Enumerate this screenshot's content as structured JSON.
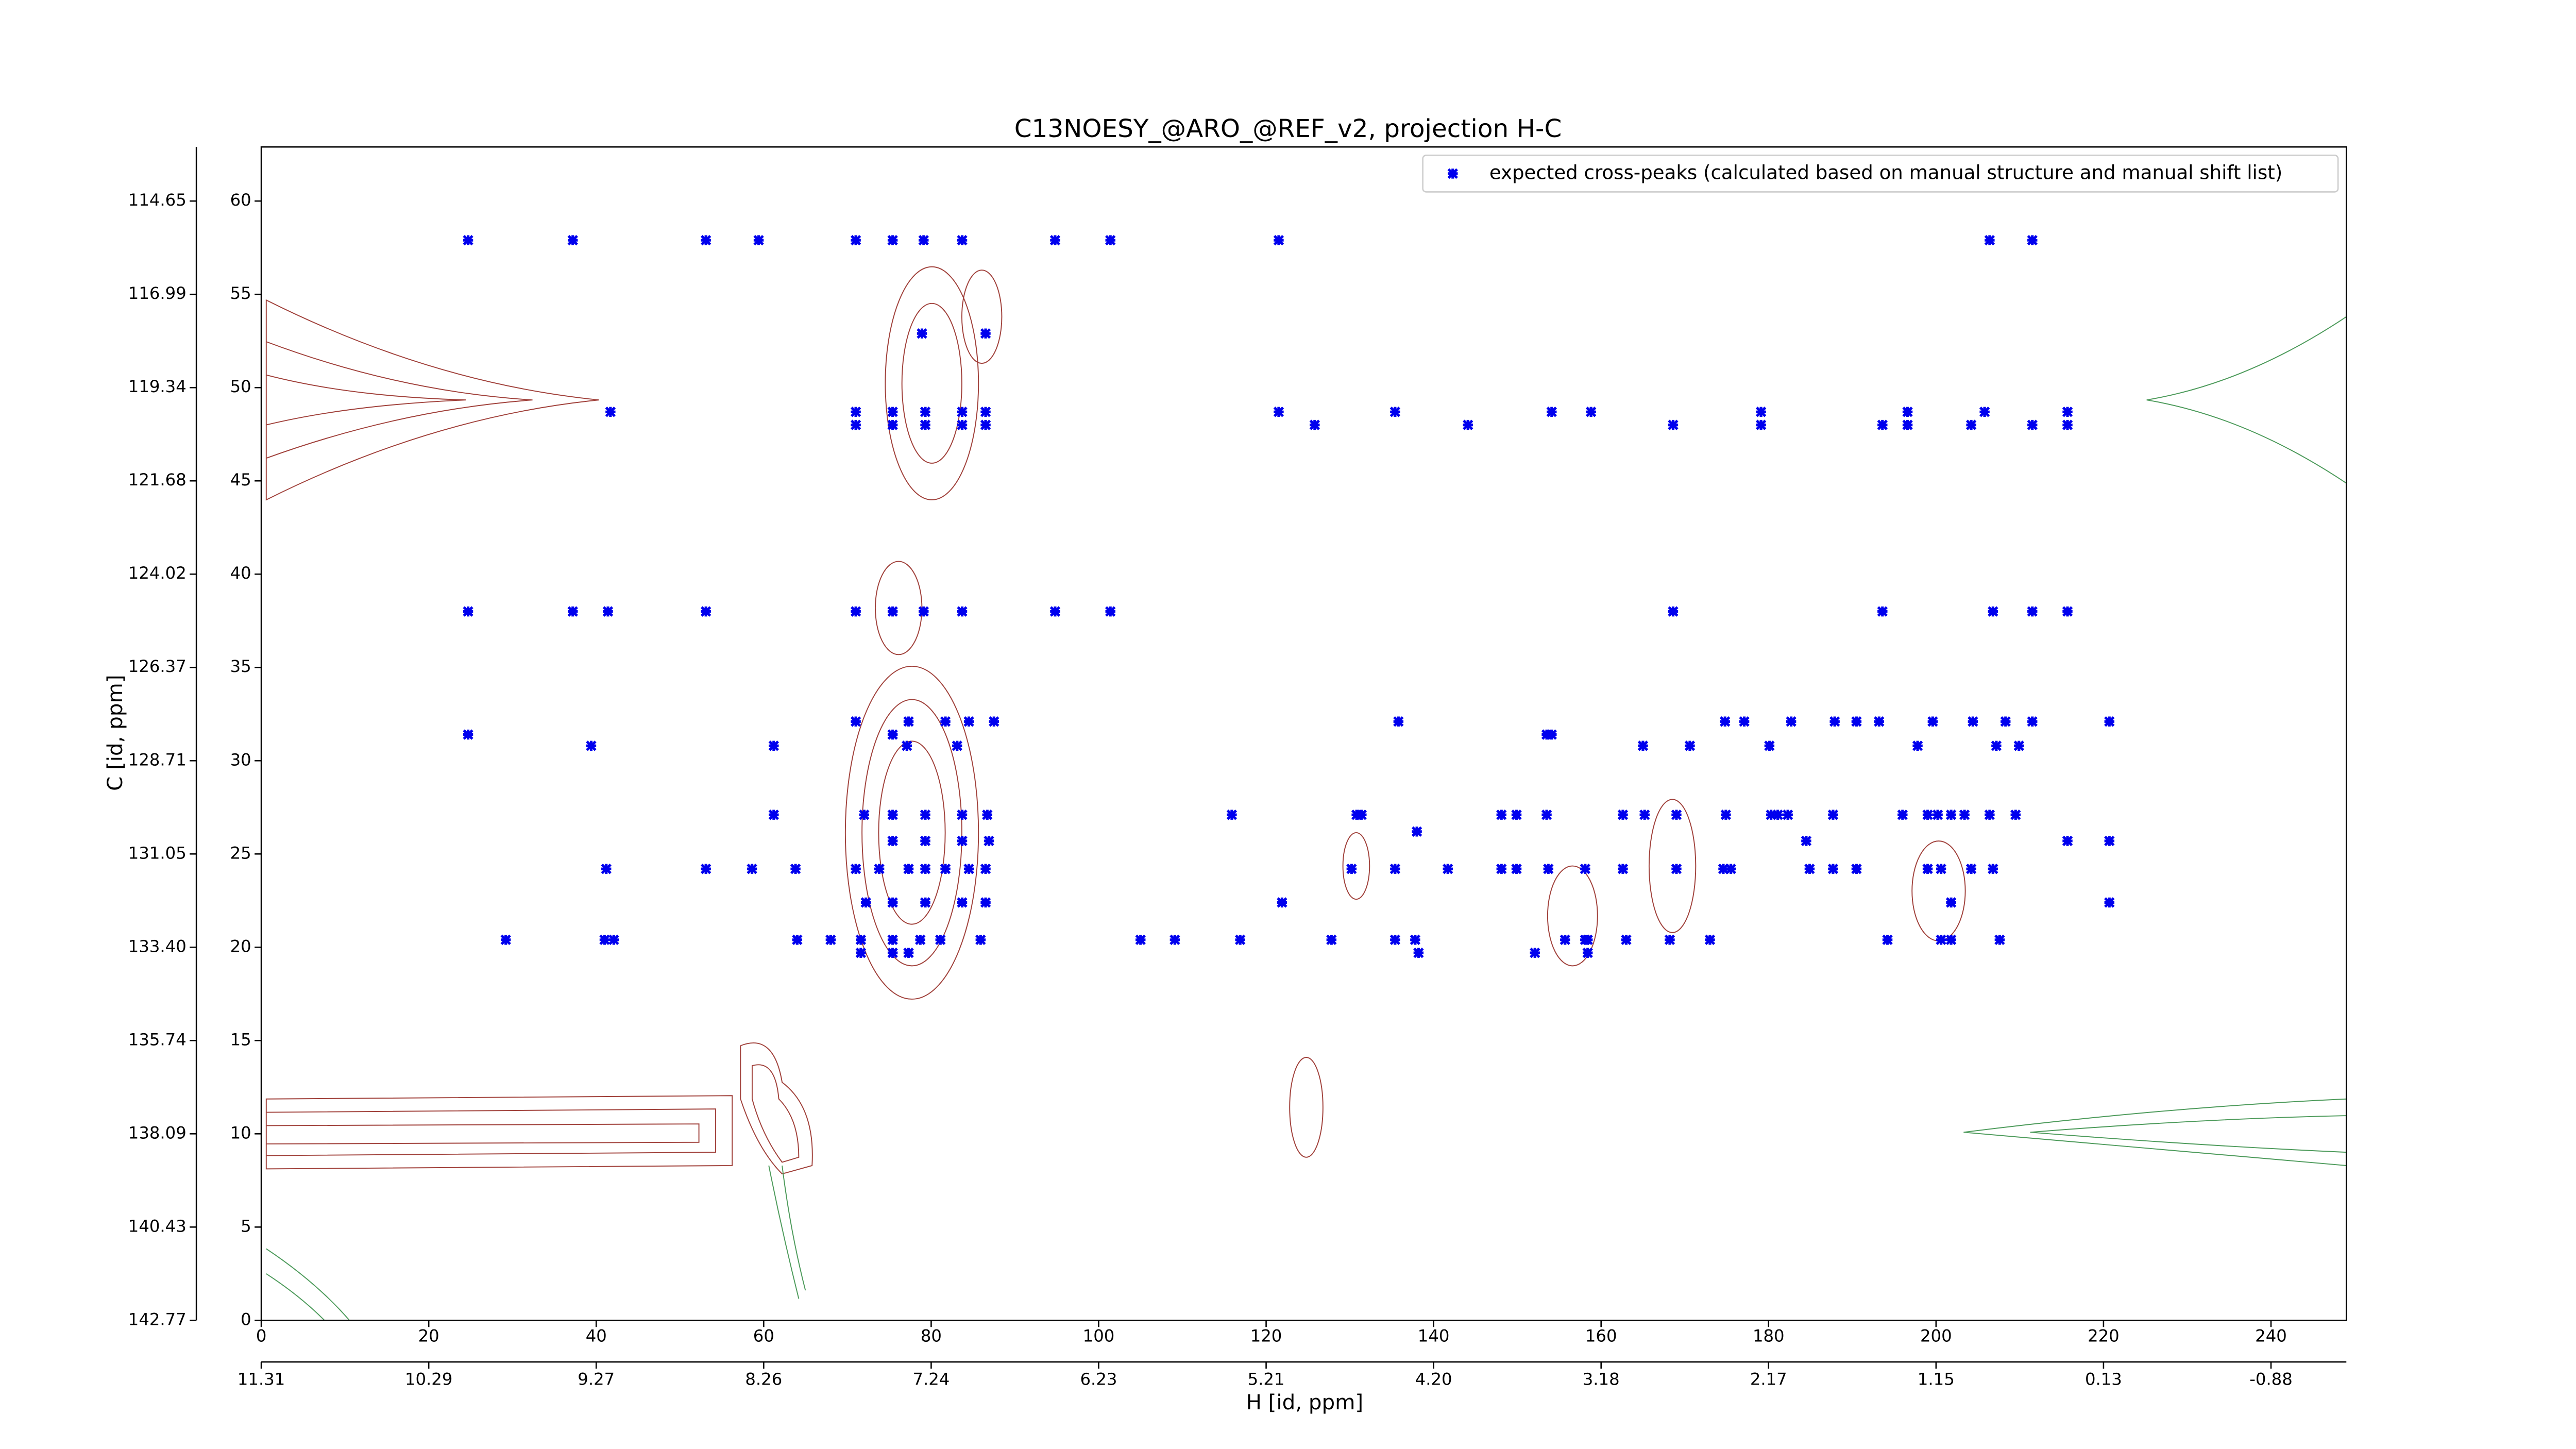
{
  "chart_data": {
    "type": "scatter",
    "title": "C13NOESY_@ARO_@REF_v2, projection H-C",
    "xlabel": "H [id, ppm]",
    "ylabel": "C [id, ppm]",
    "xlim": [
      0,
      249
    ],
    "ylim": [
      0,
      62.9
    ],
    "xticks": [
      0,
      20,
      40,
      60,
      80,
      100,
      120,
      140,
      160,
      180,
      200,
      220,
      240
    ],
    "x2ticks": [
      {
        "value": 0,
        "label": "11.31"
      },
      {
        "value": 20,
        "label": "10.29"
      },
      {
        "value": 40,
        "label": "9.27"
      },
      {
        "value": 60,
        "label": "8.26"
      },
      {
        "value": 80,
        "label": "7.24"
      },
      {
        "value": 100,
        "label": "6.23"
      },
      {
        "value": 120,
        "label": "5.21"
      },
      {
        "value": 140,
        "label": "4.20"
      },
      {
        "value": 160,
        "label": "3.18"
      },
      {
        "value": 180,
        "label": "2.17"
      },
      {
        "value": 200,
        "label": "1.15"
      },
      {
        "value": 220,
        "label": "0.13"
      },
      {
        "value": 240,
        "label": "-0.88"
      }
    ],
    "yticks": [
      0,
      5,
      10,
      15,
      20,
      25,
      30,
      35,
      40,
      45,
      50,
      55,
      60
    ],
    "y2ticks": [
      {
        "value": 60,
        "label": "114.65"
      },
      {
        "value": 55,
        "label": "116.99"
      },
      {
        "value": 50,
        "label": "119.34"
      },
      {
        "value": 45,
        "label": "121.68"
      },
      {
        "value": 40,
        "label": "124.02"
      },
      {
        "value": 35,
        "label": "126.37"
      },
      {
        "value": 30,
        "label": "128.71"
      },
      {
        "value": 25,
        "label": "131.05"
      },
      {
        "value": 20,
        "label": "133.40"
      },
      {
        "value": 15,
        "label": "135.74"
      },
      {
        "value": 10,
        "label": "138.09"
      },
      {
        "value": 5,
        "label": "140.43"
      },
      {
        "value": 0,
        "label": "142.77"
      }
    ],
    "legend": "upper right",
    "series": [
      {
        "name": "expected cross-peaks (calculated based on manual structure and manual shift list)",
        "color": "#0000ee",
        "x": [
          24.7,
          37.2,
          53.1,
          59.4,
          71.0,
          75.4,
          79.1,
          83.7,
          94.8,
          101.4,
          121.5,
          206.4,
          211.5,
          78.9,
          86.5,
          41.7,
          71.0,
          75.4,
          79.3,
          83.7,
          86.5,
          121.5,
          135.4,
          154.1,
          158.8,
          179.1,
          196.6,
          205.8,
          215.7,
          71.0,
          75.4,
          79.3,
          83.7,
          86.5,
          125.8,
          144.1,
          168.6,
          179.1,
          193.6,
          196.6,
          204.2,
          211.5,
          215.7,
          24.7,
          37.2,
          41.4,
          53.1,
          71.0,
          75.4,
          79.1,
          83.7,
          94.8,
          101.4,
          168.6,
          193.6,
          206.8,
          211.5,
          215.7,
          71.0,
          77.3,
          81.7,
          84.5,
          87.5,
          135.8,
          174.8,
          177.1,
          182.7,
          187.9,
          190.5,
          193.2,
          199.6,
          204.4,
          208.3,
          211.5,
          220.7,
          24.7,
          75.4,
          153.5,
          154.1,
          39.4,
          61.2,
          77.1,
          83.1,
          165.0,
          170.6,
          180.1,
          197.8,
          207.2,
          209.9,
          61.2,
          72.0,
          75.4,
          79.3,
          83.7,
          86.7,
          115.9,
          130.8,
          131.4,
          148.1,
          149.9,
          153.5,
          162.6,
          165.2,
          169.0,
          174.9,
          180.3,
          181.1,
          182.3,
          187.7,
          196.0,
          199.0,
          200.2,
          201.8,
          203.4,
          206.4,
          209.5,
          138.0,
          75.4,
          79.3,
          83.7,
          86.9,
          184.5,
          215.7,
          220.7,
          41.2,
          53.1,
          58.6,
          63.8,
          71.0,
          73.8,
          77.3,
          79.3,
          81.7,
          84.5,
          86.5,
          130.2,
          135.4,
          141.7,
          148.1,
          149.9,
          153.7,
          158.1,
          162.6,
          169.0,
          174.6,
          175.5,
          184.9,
          187.7,
          190.5,
          199.0,
          200.6,
          204.2,
          206.8,
          72.2,
          75.4,
          79.3,
          83.7,
          86.5,
          121.9,
          201.8,
          220.7,
          29.2,
          41.0,
          42.1,
          64.0,
          68.0,
          71.6,
          75.4,
          78.7,
          81.1,
          85.9,
          105.0,
          109.1,
          116.9,
          127.8,
          135.4,
          137.8,
          155.7,
          158.1,
          158.4,
          163.0,
          168.2,
          173.0,
          194.2,
          200.6,
          201.8,
          207.6,
          71.6,
          75.4,
          77.3,
          138.2,
          152.1,
          158.4
        ],
        "values": [
          57.9,
          57.9,
          57.9,
          57.9,
          57.9,
          57.9,
          57.9,
          57.9,
          57.9,
          57.9,
          57.9,
          57.9,
          57.9,
          52.9,
          52.9,
          48.7,
          48.7,
          48.7,
          48.7,
          48.7,
          48.7,
          48.7,
          48.7,
          48.7,
          48.7,
          48.7,
          48.7,
          48.7,
          48.7,
          48.0,
          48.0,
          48.0,
          48.0,
          48.0,
          48.0,
          48.0,
          48.0,
          48.0,
          48.0,
          48.0,
          48.0,
          48.0,
          48.0,
          38.0,
          38.0,
          38.0,
          38.0,
          38.0,
          38.0,
          38.0,
          38.0,
          38.0,
          38.0,
          38.0,
          38.0,
          38.0,
          38.0,
          38.0,
          32.1,
          32.1,
          32.1,
          32.1,
          32.1,
          32.1,
          32.1,
          32.1,
          32.1,
          32.1,
          32.1,
          32.1,
          32.1,
          32.1,
          32.1,
          32.1,
          32.1,
          31.4,
          31.4,
          31.4,
          31.4,
          30.8,
          30.8,
          30.8,
          30.8,
          30.8,
          30.8,
          30.8,
          30.8,
          30.8,
          30.8,
          27.1,
          27.1,
          27.1,
          27.1,
          27.1,
          27.1,
          27.1,
          27.1,
          27.1,
          27.1,
          27.1,
          27.1,
          27.1,
          27.1,
          27.1,
          27.1,
          27.1,
          27.1,
          27.1,
          27.1,
          27.1,
          27.1,
          27.1,
          27.1,
          27.1,
          27.1,
          27.1,
          26.2,
          25.7,
          25.7,
          25.7,
          25.7,
          25.7,
          25.7,
          25.7,
          24.2,
          24.2,
          24.2,
          24.2,
          24.2,
          24.2,
          24.2,
          24.2,
          24.2,
          24.2,
          24.2,
          24.2,
          24.2,
          24.2,
          24.2,
          24.2,
          24.2,
          24.2,
          24.2,
          24.2,
          24.2,
          24.2,
          24.2,
          24.2,
          24.2,
          24.2,
          24.2,
          24.2,
          24.2,
          22.4,
          22.4,
          22.4,
          22.4,
          22.4,
          22.4,
          22.4,
          22.4,
          20.4,
          20.4,
          20.4,
          20.4,
          20.4,
          20.4,
          20.4,
          20.4,
          20.4,
          20.4,
          20.4,
          20.4,
          20.4,
          20.4,
          20.4,
          20.4,
          20.4,
          20.4,
          20.4,
          20.4,
          20.4,
          20.4,
          20.4,
          20.4,
          20.4,
          20.4,
          19.7,
          19.7,
          19.7,
          19.7,
          19.7,
          19.7
        ]
      }
    ]
  }
}
